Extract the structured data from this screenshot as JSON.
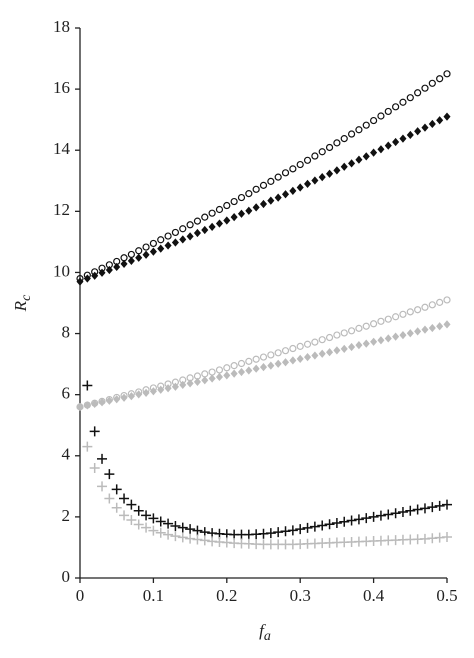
{
  "chart_data": {
    "type": "scatter",
    "x_label": {
      "main": "f",
      "sub": "a"
    },
    "y_label": {
      "main": "R",
      "sub": "c"
    },
    "x": [
      0,
      0.01,
      0.02,
      0.03,
      0.04,
      0.05,
      0.06,
      0.07,
      0.08,
      0.09,
      0.1,
      0.11,
      0.12,
      0.13,
      0.14,
      0.15,
      0.16,
      0.17,
      0.18,
      0.19,
      0.2,
      0.21,
      0.22,
      0.23,
      0.24,
      0.25,
      0.26,
      0.27,
      0.28,
      0.29,
      0.3,
      0.31,
      0.32,
      0.33,
      0.34,
      0.35,
      0.36,
      0.37,
      0.38,
      0.39,
      0.4,
      0.41,
      0.42,
      0.43,
      0.44,
      0.45,
      0.46,
      0.47,
      0.48,
      0.49,
      0.5
    ],
    "xlim": [
      0,
      0.5
    ],
    "xticks": [
      0,
      0.1,
      0.2,
      0.3,
      0.4,
      0.5
    ],
    "ylim": [
      0,
      18
    ],
    "yticks": [
      0,
      2,
      4,
      6,
      8,
      10,
      12,
      14,
      16,
      18
    ],
    "series": [
      {
        "marker": "circle",
        "color": "#111111",
        "values": [
          9.8,
          9.91,
          10.02,
          10.14,
          10.25,
          10.36,
          10.48,
          10.59,
          10.71,
          10.83,
          10.95,
          11.07,
          11.19,
          11.31,
          11.43,
          11.56,
          11.68,
          11.81,
          11.94,
          12.06,
          12.19,
          12.32,
          12.45,
          12.58,
          12.72,
          12.85,
          12.98,
          13.12,
          13.26,
          13.39,
          13.53,
          13.67,
          13.81,
          13.95,
          14.09,
          14.24,
          14.38,
          14.53,
          14.67,
          14.82,
          14.97,
          15.12,
          15.27,
          15.42,
          15.57,
          15.72,
          15.88,
          16.03,
          16.19,
          16.34,
          16.5
        ]
      },
      {
        "marker": "diamond",
        "color": "#111111",
        "values": [
          9.7,
          9.8,
          9.89,
          9.99,
          10.08,
          10.18,
          10.28,
          10.38,
          10.48,
          10.58,
          10.68,
          10.78,
          10.88,
          10.98,
          11.08,
          11.18,
          11.29,
          11.39,
          11.49,
          11.6,
          11.7,
          11.81,
          11.92,
          12.02,
          12.13,
          12.24,
          12.35,
          12.45,
          12.56,
          12.67,
          12.78,
          12.9,
          13.01,
          13.12,
          13.23,
          13.34,
          13.46,
          13.57,
          13.69,
          13.8,
          13.92,
          14.03,
          14.15,
          14.27,
          14.38,
          14.5,
          14.62,
          14.74,
          14.86,
          14.98,
          15.1
        ]
      },
      {
        "marker": "circle",
        "color": "#bbbbbb",
        "values": [
          5.6,
          5.66,
          5.72,
          5.78,
          5.84,
          5.91,
          5.97,
          6.03,
          6.09,
          6.16,
          6.22,
          6.28,
          6.35,
          6.41,
          6.48,
          6.55,
          6.61,
          6.68,
          6.74,
          6.81,
          6.88,
          6.95,
          7.02,
          7.09,
          7.16,
          7.23,
          7.3,
          7.37,
          7.44,
          7.51,
          7.58,
          7.65,
          7.72,
          7.8,
          7.87,
          7.95,
          8.02,
          8.09,
          8.17,
          8.24,
          8.32,
          8.4,
          8.47,
          8.55,
          8.63,
          8.71,
          8.78,
          8.86,
          8.94,
          9.02,
          9.1
        ]
      },
      {
        "marker": "diamond",
        "color": "#bbbbbb",
        "values": [
          5.6,
          5.65,
          5.7,
          5.75,
          5.8,
          5.85,
          5.9,
          5.95,
          6.01,
          6.06,
          6.11,
          6.16,
          6.21,
          6.26,
          6.32,
          6.37,
          6.42,
          6.47,
          6.53,
          6.58,
          6.63,
          6.69,
          6.74,
          6.79,
          6.85,
          6.9,
          6.95,
          7.01,
          7.06,
          7.12,
          7.17,
          7.23,
          7.28,
          7.34,
          7.39,
          7.45,
          7.5,
          7.56,
          7.62,
          7.67,
          7.73,
          7.78,
          7.84,
          7.9,
          7.95,
          8.01,
          8.07,
          8.13,
          8.18,
          8.24,
          8.3
        ]
      },
      {
        "marker": "plus",
        "color": "#111111",
        "values": [
          null,
          6.3,
          4.8,
          3.9,
          3.4,
          2.9,
          2.6,
          2.4,
          2.2,
          2.05,
          1.95,
          1.85,
          1.78,
          1.7,
          1.65,
          1.6,
          1.55,
          1.5,
          1.47,
          1.45,
          1.43,
          1.42,
          1.42,
          1.42,
          1.43,
          1.45,
          1.47,
          1.5,
          1.53,
          1.56,
          1.6,
          1.64,
          1.68,
          1.72,
          1.76,
          1.8,
          1.84,
          1.88,
          1.92,
          1.96,
          2.0,
          2.04,
          2.08,
          2.12,
          2.16,
          2.2,
          2.24,
          2.28,
          2.32,
          2.36,
          2.4
        ]
      },
      {
        "marker": "plus",
        "color": "#bbbbbb",
        "values": [
          null,
          4.3,
          3.6,
          3.0,
          2.6,
          2.3,
          2.05,
          1.9,
          1.75,
          1.65,
          1.55,
          1.48,
          1.42,
          1.37,
          1.33,
          1.29,
          1.26,
          1.23,
          1.2,
          1.18,
          1.16,
          1.14,
          1.13,
          1.12,
          1.11,
          1.1,
          1.1,
          1.1,
          1.1,
          1.1,
          1.11,
          1.12,
          1.13,
          1.14,
          1.15,
          1.16,
          1.17,
          1.18,
          1.19,
          1.2,
          1.21,
          1.22,
          1.23,
          1.24,
          1.25,
          1.26,
          1.27,
          1.28,
          1.3,
          1.32,
          1.34
        ]
      }
    ]
  }
}
